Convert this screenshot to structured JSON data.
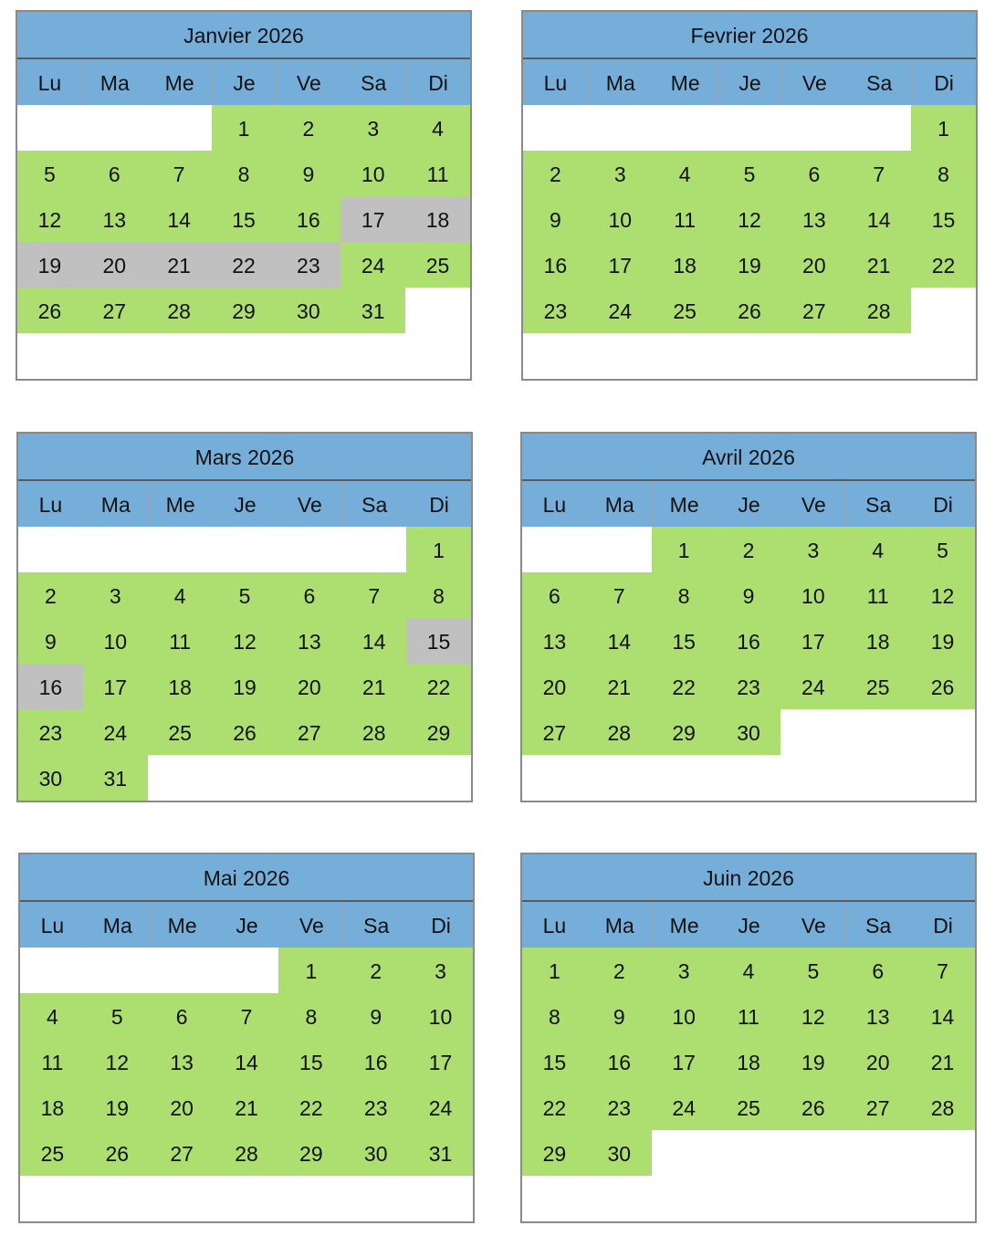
{
  "weekdays": [
    "Lu",
    "Ma",
    "Me",
    "Je",
    "Ve",
    "Sa",
    "Di"
  ],
  "colors": {
    "header": "#75afd9",
    "available": "#addf70",
    "unavailable": "#c0c0c0"
  },
  "months": [
    {
      "title": "Janvier 2026",
      "offset": 3,
      "days": 31,
      "gray": [
        17,
        18,
        19,
        20,
        21,
        22,
        23
      ]
    },
    {
      "title": "Fevrier 2026",
      "offset": 6,
      "days": 28,
      "gray": []
    },
    {
      "title": "Mars 2026",
      "offset": 6,
      "days": 31,
      "gray": [
        15,
        16
      ]
    },
    {
      "title": "Avril 2026",
      "offset": 2,
      "days": 30,
      "gray": []
    },
    {
      "title": "Mai 2026",
      "offset": 4,
      "days": 31,
      "gray": []
    },
    {
      "title": "Juin 2026",
      "offset": 0,
      "days": 30,
      "gray": []
    }
  ]
}
